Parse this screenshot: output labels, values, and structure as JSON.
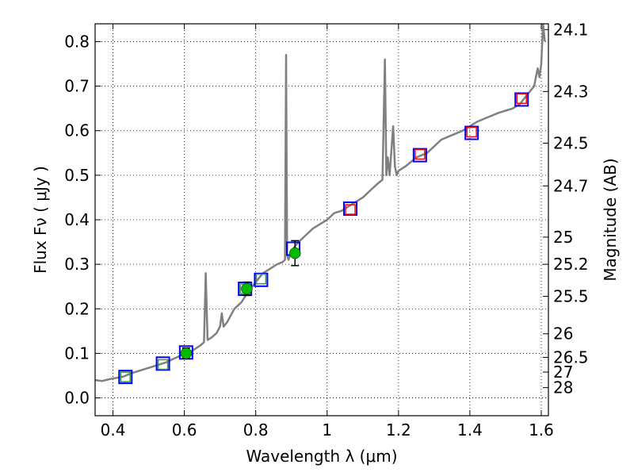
{
  "chart_data": {
    "type": "line",
    "title": "",
    "xlabel": "Wavelength  λ (μm)",
    "ylabel": "Flux  Fν  ( μJy )",
    "ylabel_right": "Magnitude (AB)",
    "xlim": [
      0.35,
      1.62
    ],
    "ylim": [
      -0.04,
      0.84
    ],
    "grid": true,
    "x_ticks": [
      0.4,
      0.6,
      0.8,
      1.0,
      1.2,
      1.4,
      1.6
    ],
    "x_tick_labels": [
      "0.4",
      "0.6",
      "0.8",
      "1",
      "1.2",
      "1.4",
      "1.6"
    ],
    "y_ticks": [
      0.0,
      0.1,
      0.2,
      0.3,
      0.4,
      0.5,
      0.6,
      0.7,
      0.8
    ],
    "y_tick_labels": [
      "0.0",
      "0.1",
      "0.2",
      "0.3",
      "0.4",
      "0.5",
      "0.6",
      "0.7",
      "0.8"
    ],
    "mag_ticks": [
      {
        "label": "24.1",
        "flux": 0.827
      },
      {
        "label": "24.3",
        "flux": 0.688
      },
      {
        "label": "24.5",
        "flux": 0.572
      },
      {
        "label": "24.7",
        "flux": 0.476
      },
      {
        "label": "25",
        "flux": 0.361
      },
      {
        "label": "25.2",
        "flux": 0.3
      },
      {
        "label": "25.5",
        "flux": 0.228
      },
      {
        "label": "26",
        "flux": 0.144
      },
      {
        "label": "26.5",
        "flux": 0.091
      },
      {
        "label": "27",
        "flux": 0.058
      },
      {
        "label": "28",
        "flux": 0.023
      }
    ],
    "series": [
      {
        "name": "model spectrum",
        "color": "#808080",
        "x": [
          0.35,
          0.37,
          0.39,
          0.41,
          0.43,
          0.45,
          0.47,
          0.49,
          0.51,
          0.53,
          0.55,
          0.57,
          0.59,
          0.61,
          0.63,
          0.645,
          0.655,
          0.66,
          0.665,
          0.675,
          0.69,
          0.7,
          0.705,
          0.71,
          0.72,
          0.74,
          0.76,
          0.78,
          0.8,
          0.82,
          0.84,
          0.86,
          0.875,
          0.882,
          0.885,
          0.888,
          0.892,
          0.9,
          0.92,
          0.94,
          0.96,
          0.98,
          1.0,
          1.02,
          1.04,
          1.06,
          1.08,
          1.1,
          1.12,
          1.14,
          1.155,
          1.162,
          1.166,
          1.17,
          1.175,
          1.185,
          1.19,
          1.195,
          1.2,
          1.22,
          1.25,
          1.28,
          1.3,
          1.32,
          1.35,
          1.38,
          1.4,
          1.42,
          1.45,
          1.48,
          1.5,
          1.52,
          1.54,
          1.56,
          1.57,
          1.58,
          1.585,
          1.59,
          1.595,
          1.6,
          1.605,
          1.61
        ],
        "y": [
          0.04,
          0.038,
          0.042,
          0.045,
          0.048,
          0.055,
          0.06,
          0.065,
          0.07,
          0.075,
          0.08,
          0.088,
          0.095,
          0.1,
          0.11,
          0.118,
          0.125,
          0.28,
          0.13,
          0.135,
          0.145,
          0.16,
          0.19,
          0.16,
          0.17,
          0.2,
          0.215,
          0.24,
          0.26,
          0.28,
          0.29,
          0.3,
          0.305,
          0.31,
          0.77,
          0.32,
          0.31,
          0.33,
          0.35,
          0.365,
          0.38,
          0.39,
          0.4,
          0.415,
          0.42,
          0.43,
          0.44,
          0.45,
          0.465,
          0.48,
          0.49,
          0.76,
          0.5,
          0.54,
          0.5,
          0.61,
          0.52,
          0.5,
          0.51,
          0.52,
          0.54,
          0.55,
          0.565,
          0.58,
          0.59,
          0.6,
          0.61,
          0.62,
          0.63,
          0.64,
          0.645,
          0.65,
          0.66,
          0.68,
          0.69,
          0.7,
          0.72,
          0.74,
          0.72,
          0.75,
          0.84,
          0.8
        ]
      },
      {
        "name": "blue squares",
        "color": "#0000ff",
        "x": [
          0.435,
          0.54,
          0.605,
          0.77,
          0.815,
          0.905,
          1.065,
          1.26,
          1.405,
          1.545
        ],
        "y": [
          0.047,
          0.077,
          0.102,
          0.245,
          0.265,
          0.335,
          0.425,
          0.545,
          0.595,
          0.67
        ]
      },
      {
        "name": "green squares",
        "color": "#2ca02c",
        "x": [
          0.435,
          0.54,
          0.77,
          0.815
        ],
        "y": [
          0.047,
          0.075,
          0.245,
          0.267
        ]
      },
      {
        "name": "red squares",
        "color": "#ff0000",
        "x": [
          1.065,
          1.26,
          1.405,
          1.545
        ],
        "y": [
          0.423,
          0.547,
          0.597,
          0.672
        ]
      },
      {
        "name": "observed photometry",
        "color": "#00bb00",
        "x": [
          0.605,
          0.775,
          0.91
        ],
        "y": [
          0.1,
          0.245,
          0.325
        ],
        "yerr": [
          0.012,
          0.015,
          0.028
        ]
      }
    ]
  }
}
